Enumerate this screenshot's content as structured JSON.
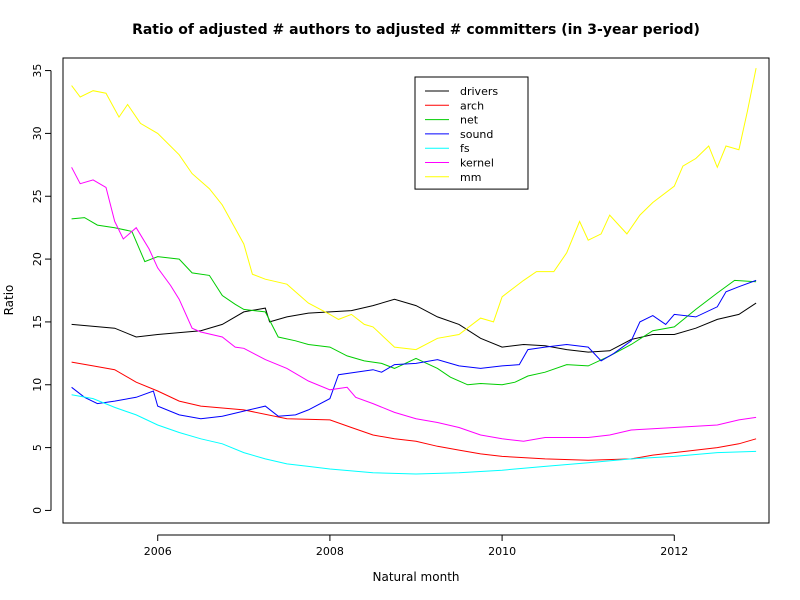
{
  "chart_data": {
    "type": "line",
    "title": "Ratio of adjusted # authors to adjusted # committers (in 3-year period)",
    "xlabel": "Natural month",
    "ylabel": "Ratio",
    "xlim": [
      2004.9,
      2013.1
    ],
    "ylim": [
      -1,
      36
    ],
    "xticks": [
      2006,
      2008,
      2010,
      2012
    ],
    "yticks": [
      0,
      5,
      10,
      15,
      20,
      25,
      30,
      35
    ],
    "xtick_labels": [
      "2006",
      "2008",
      "2010",
      "2012"
    ],
    "ytick_labels": [
      "0",
      "5",
      "10",
      "15",
      "20",
      "25",
      "30",
      "35"
    ],
    "grid": false,
    "legend_position": "top-center",
    "series": [
      {
        "name": "drivers",
        "color": "#000000",
        "points": [
          [
            2005.0,
            14.8
          ],
          [
            2005.5,
            14.5
          ],
          [
            2005.75,
            13.8
          ],
          [
            2006.0,
            14.0
          ],
          [
            2006.5,
            14.3
          ],
          [
            2006.75,
            14.8
          ],
          [
            2007.0,
            15.8
          ],
          [
            2007.25,
            16.1
          ],
          [
            2007.3,
            15.0
          ],
          [
            2007.5,
            15.4
          ],
          [
            2007.75,
            15.7
          ],
          [
            2008.0,
            15.8
          ],
          [
            2008.25,
            15.9
          ],
          [
            2008.5,
            16.3
          ],
          [
            2008.75,
            16.8
          ],
          [
            2009.0,
            16.3
          ],
          [
            2009.25,
            15.4
          ],
          [
            2009.5,
            14.8
          ],
          [
            2009.75,
            13.7
          ],
          [
            2010.0,
            13.0
          ],
          [
            2010.25,
            13.2
          ],
          [
            2010.5,
            13.1
          ],
          [
            2010.75,
            12.8
          ],
          [
            2011.0,
            12.6
          ],
          [
            2011.25,
            12.7
          ],
          [
            2011.5,
            13.6
          ],
          [
            2011.75,
            14.0
          ],
          [
            2012.0,
            14.0
          ],
          [
            2012.25,
            14.5
          ],
          [
            2012.5,
            15.2
          ],
          [
            2012.75,
            15.6
          ],
          [
            2012.95,
            16.5
          ]
        ]
      },
      {
        "name": "arch",
        "color": "#ff0000",
        "points": [
          [
            2005.0,
            11.8
          ],
          [
            2005.25,
            11.5
          ],
          [
            2005.5,
            11.2
          ],
          [
            2005.75,
            10.2
          ],
          [
            2006.0,
            9.5
          ],
          [
            2006.25,
            8.7
          ],
          [
            2006.5,
            8.3
          ],
          [
            2007.0,
            8.0
          ],
          [
            2007.5,
            7.3
          ],
          [
            2008.0,
            7.2
          ],
          [
            2008.25,
            6.6
          ],
          [
            2008.5,
            6.0
          ],
          [
            2008.75,
            5.7
          ],
          [
            2009.0,
            5.5
          ],
          [
            2009.25,
            5.1
          ],
          [
            2009.5,
            4.8
          ],
          [
            2009.75,
            4.5
          ],
          [
            2010.0,
            4.3
          ],
          [
            2010.5,
            4.1
          ],
          [
            2011.0,
            4.0
          ],
          [
            2011.5,
            4.1
          ],
          [
            2011.75,
            4.4
          ],
          [
            2012.0,
            4.6
          ],
          [
            2012.25,
            4.8
          ],
          [
            2012.5,
            5.0
          ],
          [
            2012.75,
            5.3
          ],
          [
            2012.95,
            5.7
          ]
        ]
      },
      {
        "name": "net",
        "color": "#00cd00",
        "points": [
          [
            2005.0,
            23.2
          ],
          [
            2005.15,
            23.3
          ],
          [
            2005.3,
            22.7
          ],
          [
            2005.5,
            22.5
          ],
          [
            2005.7,
            22.2
          ],
          [
            2005.85,
            19.8
          ],
          [
            2006.0,
            20.2
          ],
          [
            2006.25,
            20.0
          ],
          [
            2006.4,
            18.9
          ],
          [
            2006.6,
            18.7
          ],
          [
            2006.75,
            17.1
          ],
          [
            2006.9,
            16.4
          ],
          [
            2007.0,
            16.0
          ],
          [
            2007.25,
            15.8
          ],
          [
            2007.4,
            13.8
          ],
          [
            2007.6,
            13.5
          ],
          [
            2007.75,
            13.2
          ],
          [
            2008.0,
            13.0
          ],
          [
            2008.2,
            12.3
          ],
          [
            2008.4,
            11.9
          ],
          [
            2008.6,
            11.7
          ],
          [
            2008.75,
            11.3
          ],
          [
            2009.0,
            12.1
          ],
          [
            2009.25,
            11.3
          ],
          [
            2009.4,
            10.6
          ],
          [
            2009.6,
            10.0
          ],
          [
            2009.75,
            10.1
          ],
          [
            2010.0,
            10.0
          ],
          [
            2010.15,
            10.2
          ],
          [
            2010.3,
            10.7
          ],
          [
            2010.5,
            11.0
          ],
          [
            2010.75,
            11.6
          ],
          [
            2011.0,
            11.5
          ],
          [
            2011.25,
            12.3
          ],
          [
            2011.5,
            13.2
          ],
          [
            2011.75,
            14.3
          ],
          [
            2012.0,
            14.6
          ],
          [
            2012.25,
            16.0
          ],
          [
            2012.5,
            17.3
          ],
          [
            2012.7,
            18.3
          ],
          [
            2012.95,
            18.2
          ]
        ]
      },
      {
        "name": "sound",
        "color": "#0000ff",
        "points": [
          [
            2005.0,
            9.8
          ],
          [
            2005.15,
            9.0
          ],
          [
            2005.3,
            8.5
          ],
          [
            2005.5,
            8.7
          ],
          [
            2005.75,
            9.0
          ],
          [
            2005.95,
            9.5
          ],
          [
            2006.0,
            8.3
          ],
          [
            2006.25,
            7.6
          ],
          [
            2006.5,
            7.3
          ],
          [
            2006.75,
            7.5
          ],
          [
            2007.0,
            7.9
          ],
          [
            2007.25,
            8.3
          ],
          [
            2007.4,
            7.5
          ],
          [
            2007.6,
            7.6
          ],
          [
            2007.75,
            8.0
          ],
          [
            2008.0,
            8.9
          ],
          [
            2008.1,
            10.8
          ],
          [
            2008.3,
            11.0
          ],
          [
            2008.5,
            11.2
          ],
          [
            2008.6,
            11.0
          ],
          [
            2008.75,
            11.6
          ],
          [
            2009.0,
            11.7
          ],
          [
            2009.25,
            12.0
          ],
          [
            2009.5,
            11.5
          ],
          [
            2009.75,
            11.3
          ],
          [
            2010.0,
            11.5
          ],
          [
            2010.2,
            11.6
          ],
          [
            2010.3,
            12.8
          ],
          [
            2010.5,
            13.0
          ],
          [
            2010.75,
            13.2
          ],
          [
            2011.0,
            13.0
          ],
          [
            2011.15,
            11.9
          ],
          [
            2011.3,
            12.5
          ],
          [
            2011.5,
            13.5
          ],
          [
            2011.6,
            15.0
          ],
          [
            2011.75,
            15.5
          ],
          [
            2011.9,
            14.8
          ],
          [
            2012.0,
            15.6
          ],
          [
            2012.25,
            15.4
          ],
          [
            2012.5,
            16.2
          ],
          [
            2012.6,
            17.4
          ],
          [
            2012.75,
            17.8
          ],
          [
            2012.95,
            18.3
          ]
        ]
      },
      {
        "name": "fs",
        "color": "#00ffff",
        "points": [
          [
            2005.0,
            9.2
          ],
          [
            2005.25,
            8.9
          ],
          [
            2005.5,
            8.2
          ],
          [
            2005.75,
            7.6
          ],
          [
            2006.0,
            6.8
          ],
          [
            2006.25,
            6.2
          ],
          [
            2006.5,
            5.7
          ],
          [
            2006.75,
            5.3
          ],
          [
            2007.0,
            4.6
          ],
          [
            2007.25,
            4.1
          ],
          [
            2007.5,
            3.7
          ],
          [
            2007.75,
            3.5
          ],
          [
            2008.0,
            3.3
          ],
          [
            2008.5,
            3.0
          ],
          [
            2009.0,
            2.9
          ],
          [
            2009.5,
            3.0
          ],
          [
            2010.0,
            3.2
          ],
          [
            2010.5,
            3.5
          ],
          [
            2011.0,
            3.8
          ],
          [
            2011.5,
            4.1
          ],
          [
            2012.0,
            4.3
          ],
          [
            2012.5,
            4.6
          ],
          [
            2012.95,
            4.7
          ]
        ]
      },
      {
        "name": "kernel",
        "color": "#ff00ff",
        "points": [
          [
            2005.0,
            27.3
          ],
          [
            2005.1,
            26.0
          ],
          [
            2005.25,
            26.3
          ],
          [
            2005.4,
            25.7
          ],
          [
            2005.5,
            23.0
          ],
          [
            2005.6,
            21.6
          ],
          [
            2005.75,
            22.5
          ],
          [
            2005.9,
            20.8
          ],
          [
            2006.0,
            19.3
          ],
          [
            2006.15,
            17.9
          ],
          [
            2006.25,
            16.8
          ],
          [
            2006.4,
            14.5
          ],
          [
            2006.5,
            14.2
          ],
          [
            2006.75,
            13.8
          ],
          [
            2006.9,
            13.0
          ],
          [
            2007.0,
            12.9
          ],
          [
            2007.25,
            12.0
          ],
          [
            2007.5,
            11.3
          ],
          [
            2007.75,
            10.3
          ],
          [
            2008.0,
            9.6
          ],
          [
            2008.2,
            9.8
          ],
          [
            2008.3,
            9.0
          ],
          [
            2008.5,
            8.5
          ],
          [
            2008.75,
            7.8
          ],
          [
            2009.0,
            7.3
          ],
          [
            2009.25,
            7.0
          ],
          [
            2009.5,
            6.6
          ],
          [
            2009.75,
            6.0
          ],
          [
            2010.0,
            5.7
          ],
          [
            2010.25,
            5.5
          ],
          [
            2010.5,
            5.8
          ],
          [
            2011.0,
            5.8
          ],
          [
            2011.25,
            6.0
          ],
          [
            2011.5,
            6.4
          ],
          [
            2011.75,
            6.5
          ],
          [
            2012.0,
            6.6
          ],
          [
            2012.5,
            6.8
          ],
          [
            2012.75,
            7.2
          ],
          [
            2012.95,
            7.4
          ]
        ]
      },
      {
        "name": "mm",
        "color": "#ffff00",
        "points": [
          [
            2005.0,
            33.8
          ],
          [
            2005.1,
            32.9
          ],
          [
            2005.25,
            33.4
          ],
          [
            2005.4,
            33.2
          ],
          [
            2005.55,
            31.3
          ],
          [
            2005.65,
            32.3
          ],
          [
            2005.8,
            30.8
          ],
          [
            2006.0,
            30.0
          ],
          [
            2006.25,
            28.3
          ],
          [
            2006.4,
            26.8
          ],
          [
            2006.6,
            25.6
          ],
          [
            2006.75,
            24.3
          ],
          [
            2007.0,
            21.2
          ],
          [
            2007.1,
            18.8
          ],
          [
            2007.25,
            18.4
          ],
          [
            2007.5,
            18.0
          ],
          [
            2007.75,
            16.5
          ],
          [
            2008.0,
            15.6
          ],
          [
            2008.1,
            15.2
          ],
          [
            2008.25,
            15.6
          ],
          [
            2008.4,
            14.8
          ],
          [
            2008.5,
            14.6
          ],
          [
            2008.75,
            13.0
          ],
          [
            2009.0,
            12.8
          ],
          [
            2009.25,
            13.7
          ],
          [
            2009.5,
            14.0
          ],
          [
            2009.75,
            15.3
          ],
          [
            2009.9,
            15.0
          ],
          [
            2010.0,
            17.0
          ],
          [
            2010.25,
            18.3
          ],
          [
            2010.4,
            19.0
          ],
          [
            2010.6,
            19.0
          ],
          [
            2010.75,
            20.5
          ],
          [
            2010.9,
            23.0
          ],
          [
            2011.0,
            21.5
          ],
          [
            2011.15,
            22.0
          ],
          [
            2011.25,
            23.5
          ],
          [
            2011.45,
            22.0
          ],
          [
            2011.6,
            23.5
          ],
          [
            2011.75,
            24.5
          ],
          [
            2012.0,
            25.8
          ],
          [
            2012.1,
            27.4
          ],
          [
            2012.25,
            28.0
          ],
          [
            2012.4,
            29.0
          ],
          [
            2012.5,
            27.3
          ],
          [
            2012.6,
            29.0
          ],
          [
            2012.75,
            28.7
          ],
          [
            2012.85,
            31.8
          ],
          [
            2012.95,
            35.2
          ]
        ]
      }
    ]
  }
}
